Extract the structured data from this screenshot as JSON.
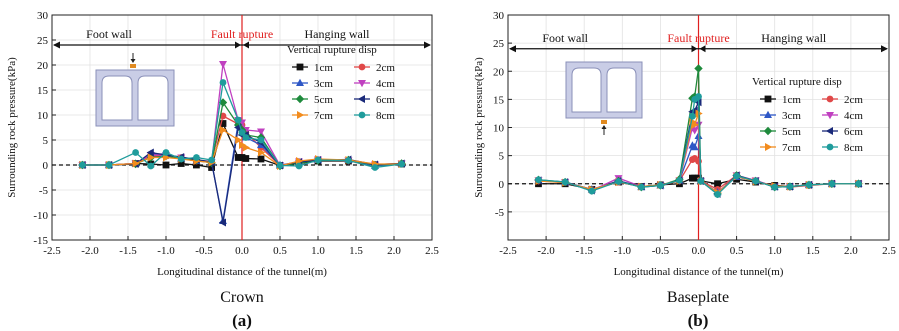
{
  "chart_data": [
    {
      "type": "line",
      "panel_label": "(a)",
      "caption": "Crown",
      "xlabel": "Longitudinal distance of the tunnel(m)",
      "ylabel": "Surrounding rock pressure(kPa)",
      "xlim": [
        -2.5,
        2.5
      ],
      "ylim": [
        -15,
        30
      ],
      "xticks": [
        "-2.5",
        "-2.0",
        "-1.5",
        "-1.0",
        "-0.5",
        "0.0",
        "0.5",
        "1.0",
        "1.5",
        "2.0",
        "2.5"
      ],
      "yticks": [
        "-15",
        "-10",
        "-5",
        "0",
        "5",
        "10",
        "15",
        "20",
        "25",
        "30"
      ],
      "grid": true,
      "zones": {
        "left": "Foot wall",
        "center": "Fault rupture",
        "right": "Hanging wall"
      },
      "legend_title": "Vertical rupture disp",
      "legend_position": "right",
      "x": [
        -2.1,
        -1.75,
        -1.4,
        -1.2,
        -1.0,
        -0.8,
        -0.6,
        -0.4,
        -0.25,
        -0.05,
        0.0,
        0.05,
        0.25,
        0.5,
        0.75,
        1.0,
        1.4,
        1.75,
        2.1
      ],
      "series": [
        {
          "name": "1cm",
          "color": "#111111",
          "marker": "square",
          "values": [
            0,
            0,
            0.3,
            0.2,
            0,
            0.3,
            0,
            -0.5,
            8.3,
            1.5,
            1.5,
            1.3,
            1.2,
            -0.1,
            0.3,
            0.8,
            0.8,
            0,
            0.2
          ]
        },
        {
          "name": "2cm",
          "color": "#e04848",
          "marker": "circle",
          "values": [
            0,
            0,
            0.2,
            1.8,
            1.8,
            1.5,
            0.8,
            0.8,
            9.8,
            8.2,
            8.0,
            6.5,
            3.5,
            -0.1,
            0.5,
            1.0,
            0.9,
            0.1,
            0.3
          ]
        },
        {
          "name": "3cm",
          "color": "#2e57c6",
          "marker": "triangle-up",
          "values": [
            0,
            0,
            0.3,
            2.2,
            2.2,
            1.3,
            0.8,
            0.5,
            -11.2,
            8.5,
            6.5,
            5.5,
            4.0,
            0,
            0.6,
            1.0,
            1.0,
            -0.2,
            0.3
          ]
        },
        {
          "name": "4cm",
          "color": "#c040c0",
          "marker": "triangle-down",
          "values": [
            0,
            0,
            0.3,
            2.0,
            2.0,
            1.5,
            1.0,
            0.6,
            20.2,
            9.0,
            8.5,
            7.0,
            6.7,
            -0.1,
            0.7,
            1.1,
            0.9,
            0.1,
            0.3
          ]
        },
        {
          "name": "5cm",
          "color": "#1e8a3c",
          "marker": "diamond",
          "values": [
            0,
            0,
            0.2,
            1.5,
            1.8,
            1.3,
            1.0,
            0.4,
            12.5,
            8.0,
            7.0,
            6.0,
            5.5,
            -0.2,
            0.4,
            0.9,
            1.0,
            0,
            0.3
          ]
        },
        {
          "name": "6cm",
          "color": "#1a2a7a",
          "marker": "triangle-left",
          "values": [
            0,
            0,
            0.2,
            2.5,
            2.0,
            1.6,
            1.1,
            0.6,
            -11.5,
            7.5,
            6.0,
            6.0,
            4.5,
            -0.1,
            0.6,
            1.0,
            1.1,
            0.1,
            0.3
          ]
        },
        {
          "name": "7cm",
          "color": "#f28c1e",
          "marker": "triangle-right",
          "values": [
            0,
            0,
            0.3,
            1.5,
            1.5,
            1.2,
            0.8,
            0.5,
            7.0,
            5.0,
            4.0,
            3.5,
            2.5,
            -0.2,
            0.8,
            1.2,
            1.0,
            0.2,
            0.2
          ]
        },
        {
          "name": "8cm",
          "color": "#1f9c9c",
          "marker": "circle",
          "values": [
            0,
            0,
            2.5,
            -0.2,
            2.5,
            1.2,
            1.5,
            1.0,
            16.5,
            9.0,
            6.5,
            5.5,
            5.0,
            -0.1,
            -0.2,
            1.0,
            0.9,
            -0.5,
            0.2
          ]
        }
      ]
    },
    {
      "type": "line",
      "panel_label": "(b)",
      "caption": "Baseplate",
      "xlabel": "Longitudinal distance of the tunnel(m)",
      "ylabel": "Surrounding rock pressure(kPa)",
      "xlim": [
        -2.5,
        2.5
      ],
      "ylim": [
        -10,
        30
      ],
      "xticks": [
        "-2.5",
        "-2.0",
        "-1.5",
        "-1.0",
        "-0.5",
        "0.0",
        "0.5",
        "1.0",
        "1.5",
        "2.0",
        "2.5"
      ],
      "yticks": [
        "-5",
        "0",
        "5",
        "10",
        "15",
        "20",
        "25",
        "30"
      ],
      "grid": true,
      "zones": {
        "left": "Foot wall",
        "center": "Fault rupture",
        "right": "Hanging  wall"
      },
      "legend_title": "Vertical rupture disp",
      "legend_position": "right",
      "x": [
        -2.1,
        -1.75,
        -1.4,
        -1.05,
        -0.75,
        -0.5,
        -0.25,
        -0.08,
        -0.05,
        0.0,
        0.03,
        0.25,
        0.5,
        0.75,
        1.0,
        1.2,
        1.45,
        1.75,
        2.1
      ],
      "series": [
        {
          "name": "1cm",
          "color": "#111111",
          "marker": "square",
          "values": [
            0,
            0,
            -1.0,
            0.3,
            -0.5,
            -0.2,
            0,
            1.0,
            1.0,
            1.0,
            0.5,
            0,
            0.8,
            0.3,
            -0.3,
            -0.5,
            -0.2,
            0,
            0
          ]
        },
        {
          "name": "2cm",
          "color": "#e04848",
          "marker": "circle",
          "values": [
            0.5,
            0.2,
            -1.0,
            0.3,
            -0.5,
            -0.3,
            0.5,
            4.3,
            4.5,
            4.0,
            0.5,
            -1.0,
            1.5,
            0.5,
            -0.5,
            -0.6,
            -0.3,
            0,
            0
          ]
        },
        {
          "name": "3cm",
          "color": "#2e57c6",
          "marker": "triangle-up",
          "values": [
            0.6,
            0.3,
            -1.0,
            0.5,
            -0.6,
            -0.3,
            0.6,
            6.8,
            6.5,
            8.5,
            0.5,
            -1.5,
            1.2,
            0.5,
            -0.6,
            -0.5,
            -0.2,
            0,
            0
          ]
        },
        {
          "name": "4cm",
          "color": "#c040c0",
          "marker": "triangle-down",
          "values": [
            0.6,
            0.3,
            -1.2,
            1.0,
            -0.5,
            -0.3,
            0.6,
            10.0,
            9.5,
            10.5,
            0.5,
            -1.6,
            1.5,
            0.6,
            -0.5,
            -0.5,
            -0.2,
            0,
            0
          ]
        },
        {
          "name": "5cm",
          "color": "#1e8a3c",
          "marker": "diamond",
          "values": [
            0.7,
            0.3,
            -1.2,
            0.5,
            -0.6,
            -0.3,
            0.8,
            15.2,
            15.5,
            20.5,
            0.5,
            -1.8,
            1.5,
            0.5,
            -0.6,
            -0.5,
            -0.2,
            0,
            0
          ]
        },
        {
          "name": "6cm",
          "color": "#1a2a7a",
          "marker": "triangle-left",
          "values": [
            0.6,
            0.3,
            -1.2,
            0.5,
            -0.5,
            -0.3,
            0.6,
            12.8,
            13.0,
            14.5,
            0.5,
            -1.8,
            1.5,
            0.5,
            -0.5,
            -0.5,
            -0.2,
            0,
            0
          ]
        },
        {
          "name": "7cm",
          "color": "#f28c1e",
          "marker": "triangle-right",
          "values": [
            0.5,
            0.2,
            -1.0,
            0.3,
            -0.5,
            -0.2,
            0.5,
            11.0,
            10.5,
            12.5,
            0.5,
            -1.6,
            1.3,
            0.4,
            -0.4,
            -0.5,
            -0.2,
            0,
            0
          ]
        },
        {
          "name": "8cm",
          "color": "#1f9c9c",
          "marker": "circle",
          "values": [
            0.7,
            0.3,
            -1.3,
            0.4,
            -0.6,
            -0.3,
            0.6,
            12.0,
            15.0,
            15.5,
            0.5,
            -1.9,
            1.4,
            0.5,
            -0.6,
            -0.5,
            -0.2,
            0,
            0
          ]
        }
      ]
    }
  ]
}
